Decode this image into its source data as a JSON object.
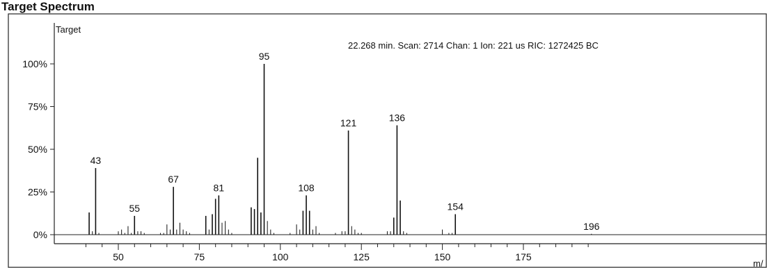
{
  "page": {
    "title": "Target Spectrum"
  },
  "chart_data": {
    "type": "bar",
    "panel_label": "Target",
    "scan_info": "22.268 min. Scan: 2714 Chan: 1 Ion: 221 us RIC: 1272425 BC",
    "xlabel": "m/",
    "ylabel": "",
    "x_ticks": [
      50,
      75,
      100,
      125,
      150,
      175
    ],
    "y_ticks": [
      "0%",
      "25%",
      "50%",
      "75%",
      "100%"
    ],
    "xlim": [
      36,
      200
    ],
    "ylim": [
      0,
      115
    ],
    "grid": false,
    "peaks": [
      {
        "mz": 41,
        "intensity": 13
      },
      {
        "mz": 42,
        "intensity": 2
      },
      {
        "mz": 43,
        "intensity": 39,
        "label": "43"
      },
      {
        "mz": 44,
        "intensity": 1
      },
      {
        "mz": 50,
        "intensity": 2
      },
      {
        "mz": 51,
        "intensity": 3
      },
      {
        "mz": 52,
        "intensity": 1
      },
      {
        "mz": 53,
        "intensity": 5
      },
      {
        "mz": 54,
        "intensity": 1
      },
      {
        "mz": 55,
        "intensity": 11,
        "label": "55"
      },
      {
        "mz": 56,
        "intensity": 2
      },
      {
        "mz": 57,
        "intensity": 2
      },
      {
        "mz": 58,
        "intensity": 1
      },
      {
        "mz": 63,
        "intensity": 1
      },
      {
        "mz": 64,
        "intensity": 1
      },
      {
        "mz": 65,
        "intensity": 6
      },
      {
        "mz": 66,
        "intensity": 3
      },
      {
        "mz": 67,
        "intensity": 28,
        "label": "67"
      },
      {
        "mz": 68,
        "intensity": 3
      },
      {
        "mz": 69,
        "intensity": 7
      },
      {
        "mz": 70,
        "intensity": 3
      },
      {
        "mz": 71,
        "intensity": 2
      },
      {
        "mz": 72,
        "intensity": 1
      },
      {
        "mz": 77,
        "intensity": 11
      },
      {
        "mz": 78,
        "intensity": 3
      },
      {
        "mz": 79,
        "intensity": 12
      },
      {
        "mz": 80,
        "intensity": 21
      },
      {
        "mz": 81,
        "intensity": 23,
        "label": "81"
      },
      {
        "mz": 82,
        "intensity": 7
      },
      {
        "mz": 83,
        "intensity": 8
      },
      {
        "mz": 84,
        "intensity": 3
      },
      {
        "mz": 85,
        "intensity": 1
      },
      {
        "mz": 91,
        "intensity": 16
      },
      {
        "mz": 92,
        "intensity": 15
      },
      {
        "mz": 93,
        "intensity": 45
      },
      {
        "mz": 94,
        "intensity": 13
      },
      {
        "mz": 95,
        "intensity": 100,
        "label": "95"
      },
      {
        "mz": 96,
        "intensity": 8
      },
      {
        "mz": 97,
        "intensity": 3
      },
      {
        "mz": 98,
        "intensity": 1
      },
      {
        "mz": 103,
        "intensity": 1
      },
      {
        "mz": 105,
        "intensity": 6
      },
      {
        "mz": 106,
        "intensity": 3
      },
      {
        "mz": 107,
        "intensity": 14
      },
      {
        "mz": 108,
        "intensity": 23,
        "label": "108"
      },
      {
        "mz": 109,
        "intensity": 14
      },
      {
        "mz": 110,
        "intensity": 3
      },
      {
        "mz": 111,
        "intensity": 5
      },
      {
        "mz": 112,
        "intensity": 1
      },
      {
        "mz": 117,
        "intensity": 1
      },
      {
        "mz": 119,
        "intensity": 2
      },
      {
        "mz": 120,
        "intensity": 2
      },
      {
        "mz": 121,
        "intensity": 61,
        "label": "121"
      },
      {
        "mz": 122,
        "intensity": 5
      },
      {
        "mz": 123,
        "intensity": 3
      },
      {
        "mz": 124,
        "intensity": 1
      },
      {
        "mz": 125,
        "intensity": 1
      },
      {
        "mz": 133,
        "intensity": 2
      },
      {
        "mz": 134,
        "intensity": 2
      },
      {
        "mz": 135,
        "intensity": 10
      },
      {
        "mz": 136,
        "intensity": 64,
        "label": "136"
      },
      {
        "mz": 137,
        "intensity": 20
      },
      {
        "mz": 138,
        "intensity": 2
      },
      {
        "mz": 139,
        "intensity": 1
      },
      {
        "mz": 150,
        "intensity": 3
      },
      {
        "mz": 152,
        "intensity": 1
      },
      {
        "mz": 153,
        "intensity": 1
      },
      {
        "mz": 154,
        "intensity": 12,
        "label": "154"
      },
      {
        "mz": 196,
        "intensity": 0.5,
        "label": "196"
      }
    ]
  }
}
